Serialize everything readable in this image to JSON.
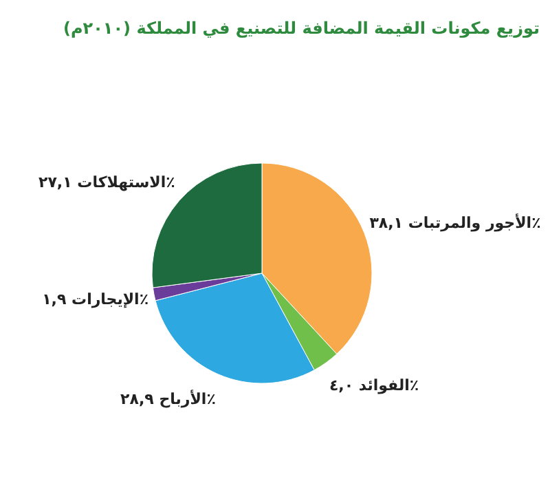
{
  "chart_data": {
    "type": "pie",
    "title": "توزيع مكونات القيمة المضافة للتصنيع في المملكة (٢٠١٠م)",
    "categories": [
      "الأجور والمرتبات",
      "الفوائد",
      "الأرباح",
      "الإيجارات",
      "الاستهلاكات"
    ],
    "values": [
      38.1,
      4.0,
      28.9,
      1.9,
      27.1
    ],
    "value_labels": [
      "٣٨,١٪",
      "٤,٠٪",
      "٢٨,٩٪",
      "١,٩٪",
      "٢٧,١٪"
    ],
    "colors": [
      "#f7a94b",
      "#6fbf4a",
      "#2ea8e0",
      "#6a3d9a",
      "#1e6b3f"
    ]
  }
}
